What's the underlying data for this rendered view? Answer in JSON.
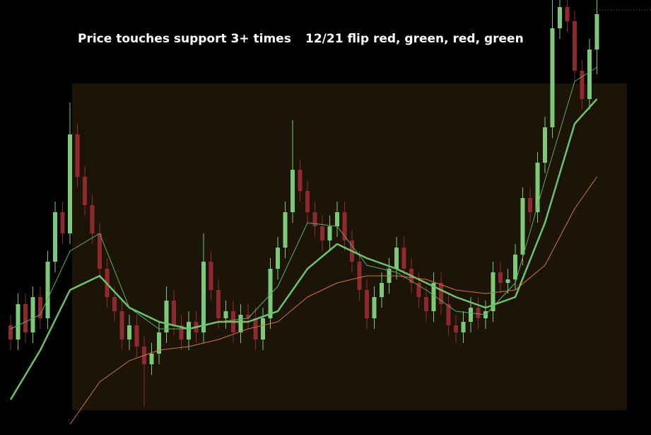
{
  "chart_data": {
    "type": "candlestick",
    "annotations": [
      "Price touches support 3+ times",
      "12/21 flip red, green, red, green"
    ],
    "ylim": [
      0,
      615
    ],
    "up_color": "#7cc97a",
    "down_color": "#8e2a2e",
    "open": [
      155,
      135,
      185,
      145,
      195,
      165,
      245,
      315,
      285,
      425,
      365,
      325,
      285,
      235,
      195,
      175,
      135,
      155,
      125,
      100,
      115,
      145,
      190,
      155,
      135,
      160,
      145,
      245,
      205,
      165,
      175,
      145,
      170,
      165,
      135,
      165,
      235,
      265,
      315,
      375,
      345,
      315,
      295,
      275,
      295,
      315,
      275,
      245,
      205,
      165,
      195,
      215,
      235,
      265,
      235,
      215,
      195,
      175,
      215,
      185,
      155,
      145,
      160,
      180,
      165,
      175,
      230,
      215,
      220,
      255,
      335,
      315,
      385,
      435,
      575,
      605,
      585,
      515,
      475,
      545
    ],
    "high": [
      170,
      200,
      200,
      210,
      210,
      260,
      330,
      330,
      470,
      440,
      380,
      340,
      300,
      250,
      210,
      190,
      170,
      170,
      140,
      130,
      160,
      210,
      205,
      170,
      175,
      175,
      285,
      260,
      220,
      190,
      190,
      185,
      185,
      180,
      180,
      250,
      280,
      330,
      445,
      390,
      360,
      330,
      310,
      310,
      330,
      330,
      290,
      260,
      220,
      210,
      230,
      250,
      280,
      280,
      250,
      230,
      210,
      230,
      230,
      200,
      170,
      175,
      195,
      195,
      190,
      245,
      245,
      235,
      270,
      350,
      350,
      400,
      450,
      615,
      615,
      615,
      600,
      530,
      560,
      615
    ],
    "low": [
      120,
      120,
      130,
      130,
      150,
      150,
      230,
      270,
      270,
      350,
      310,
      270,
      220,
      180,
      160,
      120,
      120,
      110,
      40,
      85,
      100,
      130,
      140,
      120,
      120,
      130,
      130,
      190,
      150,
      150,
      130,
      130,
      150,
      120,
      120,
      150,
      220,
      250,
      300,
      330,
      300,
      280,
      260,
      260,
      280,
      260,
      230,
      190,
      150,
      150,
      180,
      200,
      220,
      220,
      200,
      180,
      160,
      160,
      170,
      140,
      130,
      130,
      145,
      150,
      150,
      160,
      200,
      200,
      205,
      240,
      300,
      300,
      370,
      420,
      560,
      570,
      500,
      460,
      460,
      510
    ],
    "close": [
      135,
      185,
      145,
      195,
      165,
      245,
      315,
      285,
      425,
      365,
      325,
      285,
      235,
      195,
      175,
      135,
      155,
      125,
      100,
      115,
      145,
      190,
      155,
      135,
      160,
      145,
      245,
      205,
      165,
      175,
      145,
      170,
      165,
      135,
      165,
      235,
      265,
      315,
      375,
      345,
      315,
      295,
      275,
      295,
      315,
      275,
      245,
      205,
      165,
      195,
      215,
      235,
      265,
      235,
      215,
      195,
      175,
      215,
      185,
      155,
      145,
      160,
      180,
      165,
      175,
      230,
      215,
      220,
      255,
      335,
      315,
      385,
      435,
      575,
      605,
      585,
      515,
      475,
      545,
      595
    ],
    "lines": {
      "x": [
        0,
        4,
        8,
        12,
        16,
        20,
        24,
        28,
        32,
        36,
        40,
        44,
        48,
        52,
        56,
        60,
        64,
        68,
        72,
        76,
        79
      ],
      "series": [
        {
          "color": "#5fae5c",
          "width": 1,
          "values": [
            150,
            170,
            260,
            285,
            180,
            150,
            150,
            160,
            165,
            210,
            300,
            295,
            240,
            230,
            205,
            175,
            170,
            215,
            360,
            500,
            520
          ]
        },
        {
          "color": "#6cc46a",
          "width": 2.5,
          "values": [
            50,
            120,
            205,
            225,
            180,
            160,
            150,
            160,
            160,
            175,
            235,
            270,
            250,
            235,
            215,
            195,
            180,
            195,
            300,
            440,
            475
          ]
        },
        {
          "color": "#c9793a",
          "width": 1,
          "values": [
            null,
            null,
            15,
            75,
            105,
            120,
            125,
            135,
            150,
            160,
            195,
            215,
            225,
            225,
            220,
            205,
            200,
            205,
            240,
            320,
            365
          ]
        }
      ]
    }
  }
}
